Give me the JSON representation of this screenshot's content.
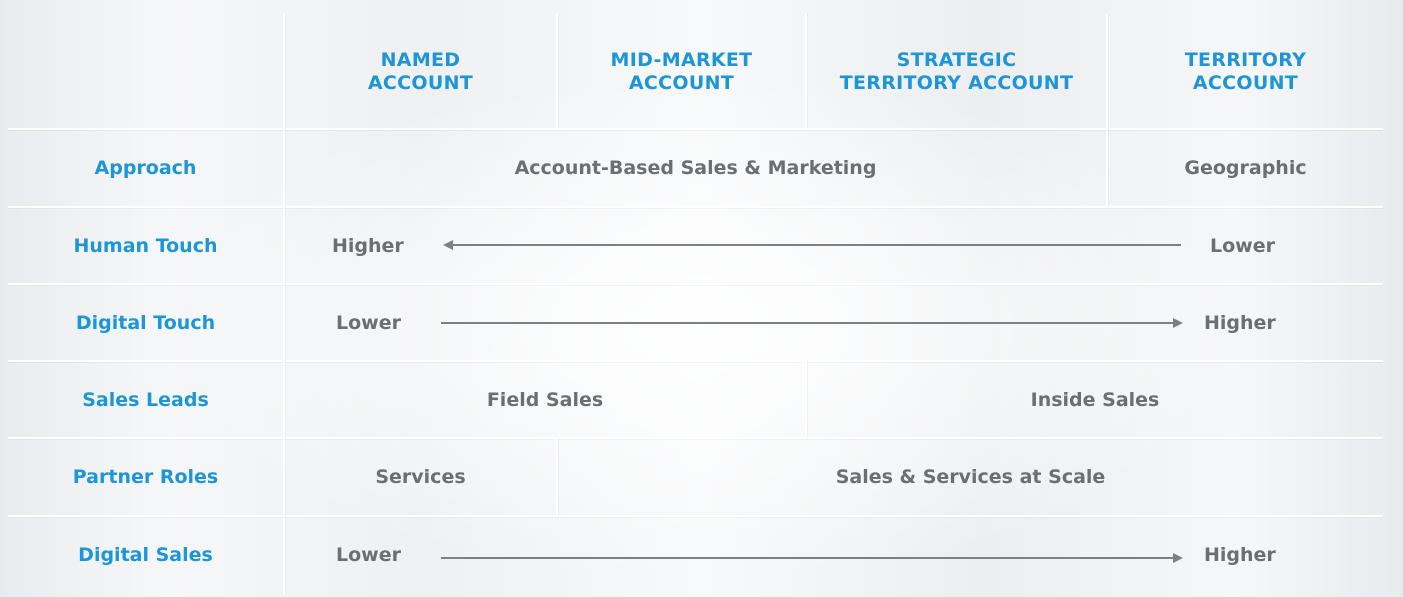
{
  "columns": [
    {
      "label": "NAMED\nACCOUNT"
    },
    {
      "label": "MID-MARKET\nACCOUNT"
    },
    {
      "label": "STRATEGIC\nTERRITORY ACCOUNT"
    },
    {
      "label": "TERRITORY\nACCOUNT"
    }
  ],
  "rows": {
    "approach": {
      "label": "Approach",
      "account_based": "Account-Based Sales & Marketing",
      "geographic": "Geographic"
    },
    "human_touch": {
      "label": "Human Touch",
      "start": "Higher",
      "end": "Lower",
      "arrow_direction": "left"
    },
    "digital_touch": {
      "label": "Digital Touch",
      "start": "Lower",
      "end": "Higher",
      "arrow_direction": "right"
    },
    "sales_leads": {
      "label": "Sales Leads",
      "field": "Field Sales",
      "inside": "Inside Sales"
    },
    "partner_roles": {
      "label": "Partner Roles",
      "services": "Services",
      "scale": "Sales & Services at Scale"
    },
    "digital_sales": {
      "label": "Digital Sales",
      "start": "Lower",
      "end": "Higher",
      "arrow_direction": "right"
    }
  },
  "colors": {
    "accent": "#1d95d6",
    "text": "#6c6f72",
    "arrow": "#7d8083"
  }
}
